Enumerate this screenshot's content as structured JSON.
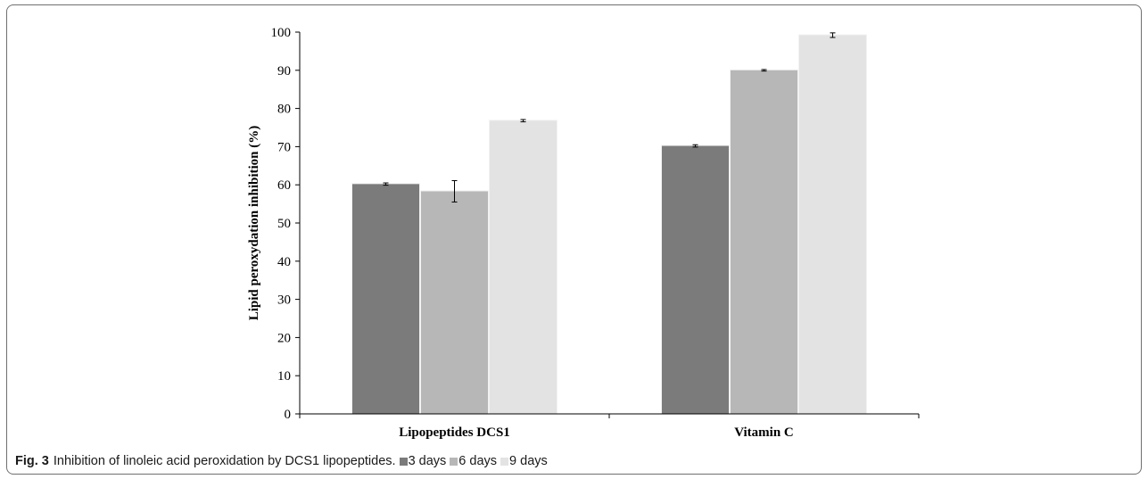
{
  "caption": {
    "label": "Fig. 3",
    "text": "Inhibition of linoleic acid peroxidation by DCS1 lipopeptides."
  },
  "legend": [
    {
      "text": "3 days",
      "color": "#7b7b7b"
    },
    {
      "text": "6 days",
      "color": "#b7b7b7"
    },
    {
      "text": "9 days",
      "color": "#e3e3e3"
    }
  ],
  "chart_data": {
    "type": "bar",
    "categories": [
      "Lipopeptides DCS1",
      "Vitamin C"
    ],
    "series": [
      {
        "name": "3 days",
        "color": "#7b7b7b",
        "values": [
          60.2,
          70.2
        ],
        "errors": [
          0.3,
          0.3
        ]
      },
      {
        "name": "6 days",
        "color": "#b7b7b7",
        "values": [
          58.3,
          90.0
        ],
        "errors": [
          2.8,
          0.2
        ]
      },
      {
        "name": "9 days",
        "color": "#e3e3e3",
        "values": [
          76.8,
          99.2
        ],
        "errors": [
          0.3,
          0.6
        ]
      }
    ],
    "ylabel": "Lipid peroxydation inhibition (%)",
    "ylim": [
      0,
      100
    ],
    "yticks": [
      0,
      10,
      20,
      30,
      40,
      50,
      60,
      70,
      80,
      90,
      100
    ],
    "legend_position": "caption"
  }
}
